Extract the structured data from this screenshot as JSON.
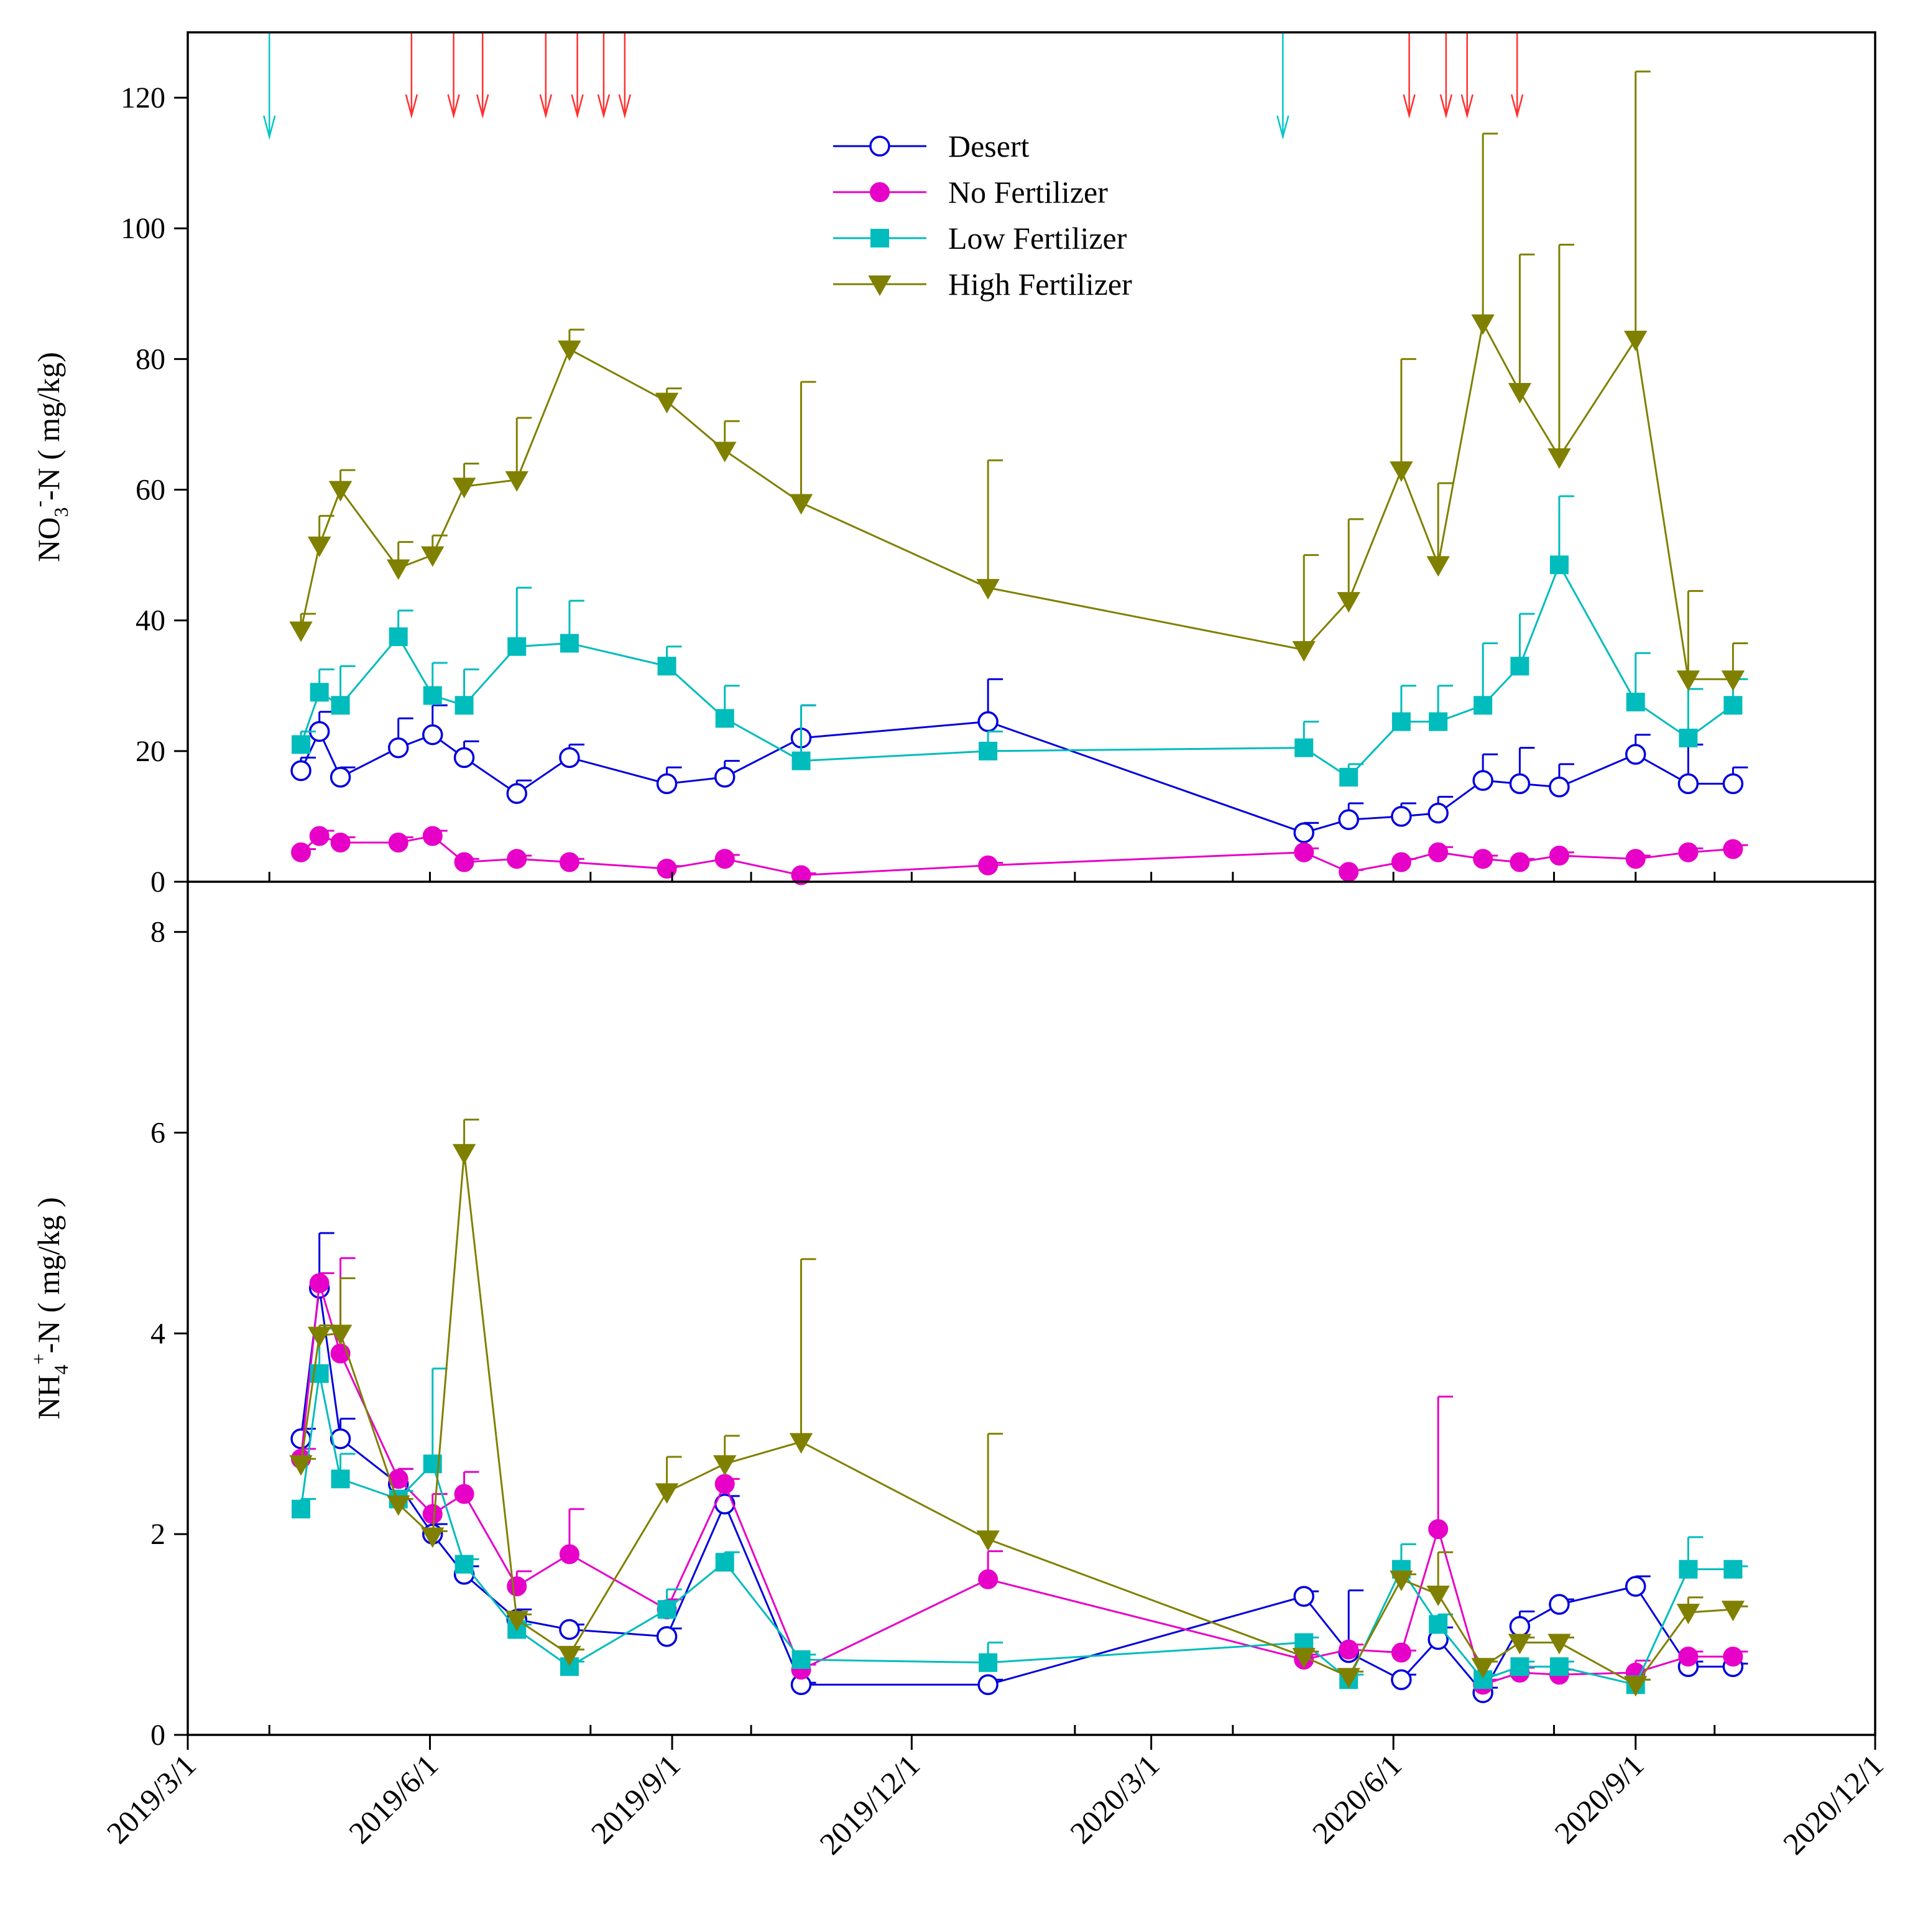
{
  "colors": {
    "Desert": "#0000dd",
    "No Fertilizer": "#e600c8",
    "Low Fertilizer": "#00bcbc",
    "High Fertilizer": "#808000",
    "irrigation_arrow": "#00c8c8",
    "fertilization_arrow": "#ff3030",
    "axis": "#000000"
  },
  "chart_data": [
    {
      "type": "line",
      "panel": "top",
      "title": "",
      "ylabel_parts": [
        "NO",
        "3",
        "-",
        "-N ( mg/kg)"
      ],
      "ylim": [
        0,
        130
      ],
      "yticks": [
        0,
        20,
        40,
        60,
        80,
        100,
        120
      ],
      "xlim": [
        "2019-03-01",
        "2020-12-01"
      ],
      "xticks": [
        "2019-03-01",
        "2019-06-01",
        "2019-09-01",
        "2019-12-01",
        "2020-03-01",
        "2020-06-01",
        "2020-09-01",
        "2020-12-01"
      ],
      "legend": "top-center",
      "irrigation_arrows": [
        "2019-04-01",
        "2020-04-20"
      ],
      "fertilization_arrows": [
        "2019-05-25",
        "2019-06-10",
        "2019-06-21",
        "2019-07-15",
        "2019-07-27",
        "2019-08-06",
        "2019-08-14",
        "2020-06-07",
        "2020-06-21",
        "2020-06-29",
        "2020-07-18"
      ],
      "series": [
        {
          "name": "Desert",
          "marker": "circle-open",
          "x": [
            "2019-04-13",
            "2019-04-20",
            "2019-04-28",
            "2019-05-20",
            "2019-06-02",
            "2019-06-14",
            "2019-07-04",
            "2019-07-24",
            "2019-08-30",
            "2019-09-21",
            "2019-10-20",
            "2019-12-30",
            "2020-04-28",
            "2020-05-15",
            "2020-06-04",
            "2020-06-18",
            "2020-07-05",
            "2020-07-19",
            "2020-08-03",
            "2020-09-01",
            "2020-09-21",
            "2020-10-08"
          ],
          "values": [
            17,
            23,
            16,
            20.5,
            22.5,
            19,
            13.5,
            19,
            15,
            16,
            22,
            24.5,
            7.5,
            9.5,
            10,
            10.5,
            15.5,
            15,
            14.5,
            19.5,
            15,
            15
          ],
          "err": [
            2,
            3,
            1.5,
            4.5,
            4.5,
            2.5,
            2,
            2,
            2.5,
            2.5,
            5,
            6.5,
            1.5,
            2.5,
            2,
            2.5,
            4,
            5.5,
            3.5,
            3,
            6,
            2.5
          ]
        },
        {
          "name": "No Fertilizer",
          "marker": "circle-filled",
          "x": [
            "2019-04-13",
            "2019-04-20",
            "2019-04-28",
            "2019-05-20",
            "2019-06-02",
            "2019-06-14",
            "2019-07-04",
            "2019-07-24",
            "2019-08-30",
            "2019-09-21",
            "2019-10-20",
            "2019-12-30",
            "2020-04-28",
            "2020-05-15",
            "2020-06-04",
            "2020-06-18",
            "2020-07-05",
            "2020-07-19",
            "2020-08-03",
            "2020-09-01",
            "2020-09-21",
            "2020-10-08"
          ],
          "values": [
            4.5,
            7,
            6,
            6,
            7,
            3,
            3.5,
            3,
            2,
            3.5,
            1,
            2.5,
            4.5,
            1.5,
            3,
            4.5,
            3.5,
            3,
            4,
            3.5,
            4.5,
            5
          ],
          "err": [
            0.5,
            0.8,
            0.8,
            0.8,
            0.8,
            0.5,
            0.5,
            0.5,
            0.4,
            0.6,
            0.3,
            0.4,
            0.6,
            0.3,
            0.5,
            0.8,
            0.5,
            0.5,
            0.5,
            0.5,
            0.6,
            0.6
          ]
        },
        {
          "name": "Low Fertilizer",
          "marker": "square-filled",
          "x": [
            "2019-04-13",
            "2019-04-20",
            "2019-04-28",
            "2019-05-20",
            "2019-06-02",
            "2019-06-14",
            "2019-07-04",
            "2019-07-24",
            "2019-08-30",
            "2019-09-21",
            "2019-10-20",
            "2019-12-30",
            "2020-04-28",
            "2020-05-15",
            "2020-06-04",
            "2020-06-18",
            "2020-07-05",
            "2020-07-19",
            "2020-08-03",
            "2020-09-01",
            "2020-09-21",
            "2020-10-08"
          ],
          "values": [
            21,
            29,
            27,
            37.5,
            28.5,
            27,
            36,
            36.5,
            33,
            25,
            18.5,
            20,
            20.5,
            16,
            24.5,
            24.5,
            27,
            33,
            48.5,
            27.5,
            22,
            27
          ],
          "err": [
            2,
            3.5,
            6,
            4,
            5,
            5.5,
            9,
            6.5,
            3,
            5,
            8.5,
            3,
            4,
            2,
            5.5,
            5.5,
            9.5,
            8,
            10.5,
            7.5,
            7.5,
            4
          ]
        },
        {
          "name": "High Fertilizer",
          "marker": "triangle-down-filled",
          "x": [
            "2019-04-13",
            "2019-04-20",
            "2019-04-28",
            "2019-05-20",
            "2019-06-02",
            "2019-06-14",
            "2019-07-04",
            "2019-07-24",
            "2019-08-30",
            "2019-09-21",
            "2019-10-20",
            "2019-12-30",
            "2020-04-28",
            "2020-05-15",
            "2020-06-04",
            "2020-06-18",
            "2020-07-05",
            "2020-07-19",
            "2020-08-03",
            "2020-09-01",
            "2020-09-21",
            "2020-10-08"
          ],
          "values": [
            38.5,
            51.5,
            60,
            48,
            50,
            60.5,
            61.5,
            81.5,
            73.5,
            66,
            58,
            45,
            35.5,
            43,
            63,
            48.5,
            85.5,
            75,
            65,
            83,
            31,
            31
          ],
          "err": [
            2.5,
            4.5,
            3,
            4,
            3,
            3.5,
            9.5,
            3,
            2,
            4.5,
            18.5,
            19.5,
            14.5,
            12.5,
            17,
            12.5,
            29,
            21,
            32.5,
            41,
            13.5,
            5.5
          ]
        }
      ]
    },
    {
      "type": "line",
      "panel": "bottom",
      "title": "",
      "ylabel_parts": [
        "NH",
        "4",
        "+",
        "-N ( mg/kg )"
      ],
      "ylim": [
        0,
        8.5
      ],
      "yticks": [
        0,
        2,
        4,
        6,
        8
      ],
      "xlim": [
        "2019-03-01",
        "2020-12-01"
      ],
      "xticks": [
        "2019-03-01",
        "2019-06-01",
        "2019-09-01",
        "2019-12-01",
        "2020-03-01",
        "2020-06-01",
        "2020-09-01",
        "2020-12-01"
      ],
      "xtick_labels": [
        "2019/3/1",
        "2019/6/1",
        "2019/9/1",
        "2019/12/1",
        "2020/3/1",
        "2020/6/1",
        "2020/9/1",
        "2020/12/1"
      ],
      "series": [
        {
          "name": "Desert",
          "marker": "circle-open",
          "x": [
            "2019-04-13",
            "2019-04-20",
            "2019-04-28",
            "2019-05-20",
            "2019-06-02",
            "2019-06-14",
            "2019-07-04",
            "2019-07-24",
            "2019-08-30",
            "2019-09-21",
            "2019-10-20",
            "2019-12-30",
            "2020-04-28",
            "2020-05-15",
            "2020-06-04",
            "2020-06-18",
            "2020-07-05",
            "2020-07-19",
            "2020-08-03",
            "2020-09-01",
            "2020-09-21",
            "2020-10-08"
          ],
          "values": [
            2.95,
            4.45,
            2.95,
            2.5,
            2.0,
            1.6,
            1.15,
            1.05,
            0.98,
            2.3,
            0.5,
            0.5,
            1.38,
            0.82,
            0.55,
            0.95,
            0.42,
            1.08,
            1.3,
            1.48,
            0.68,
            0.68
          ],
          "err": [
            0.1,
            0.55,
            0.2,
            0.15,
            0.1,
            0.08,
            0.1,
            0.05,
            0.08,
            0.08,
            0.02,
            0.05,
            0.05,
            0.62,
            0.05,
            0.12,
            0.05,
            0.15,
            0.05,
            0.1,
            0.05,
            0.03
          ]
        },
        {
          "name": "No Fertilizer",
          "marker": "circle-filled",
          "x": [
            "2019-04-13",
            "2019-04-20",
            "2019-04-28",
            "2019-05-20",
            "2019-06-02",
            "2019-06-14",
            "2019-07-04",
            "2019-07-24",
            "2019-08-30",
            "2019-09-21",
            "2019-10-20",
            "2019-12-30",
            "2020-04-28",
            "2020-05-15",
            "2020-06-04",
            "2020-06-18",
            "2020-07-05",
            "2020-07-19",
            "2020-08-03",
            "2020-09-01",
            "2020-09-21",
            "2020-10-08"
          ],
          "values": [
            2.75,
            4.5,
            3.8,
            2.55,
            2.2,
            2.4,
            1.48,
            1.8,
            1.25,
            2.5,
            0.65,
            1.55,
            0.75,
            0.85,
            0.82,
            2.05,
            0.5,
            0.62,
            0.6,
            0.62,
            0.78,
            0.78
          ],
          "err": [
            0.1,
            0.1,
            0.95,
            0.1,
            0.2,
            0.22,
            0.15,
            0.45,
            0.1,
            0.05,
            0.05,
            0.28,
            0.05,
            0.05,
            0.02,
            1.32,
            0.05,
            0.05,
            0.05,
            0.12,
            0.05,
            0.05
          ]
        },
        {
          "name": "Low Fertilizer",
          "marker": "square-filled",
          "x": [
            "2019-04-13",
            "2019-04-20",
            "2019-04-28",
            "2019-05-20",
            "2019-06-02",
            "2019-06-14",
            "2019-07-04",
            "2019-07-24",
            "2019-08-30",
            "2019-09-21",
            "2019-10-20",
            "2019-12-30",
            "2020-04-28",
            "2020-05-15",
            "2020-06-04",
            "2020-06-18",
            "2020-07-05",
            "2020-07-19",
            "2020-08-03",
            "2020-09-01",
            "2020-09-21",
            "2020-10-08"
          ],
          "values": [
            2.25,
            3.6,
            2.55,
            2.35,
            2.7,
            1.7,
            1.05,
            0.68,
            1.25,
            1.72,
            0.75,
            0.72,
            0.92,
            0.55,
            1.65,
            1.1,
            0.55,
            0.68,
            0.68,
            0.5,
            1.65,
            1.65
          ],
          "err": [
            0.1,
            0.45,
            0.25,
            0.08,
            0.95,
            0.05,
            0.05,
            0.05,
            0.2,
            0.1,
            0.05,
            0.2,
            0.05,
            0.05,
            0.25,
            0.1,
            0.05,
            0.05,
            0.05,
            0.05,
            0.32,
            0.03
          ]
        },
        {
          "name": "High Fertilizer",
          "marker": "triangle-down-filled",
          "x": [
            "2019-04-13",
            "2019-04-20",
            "2019-04-28",
            "2019-05-20",
            "2019-06-02",
            "2019-06-14",
            "2019-07-04",
            "2019-07-24",
            "2019-08-30",
            "2019-09-21",
            "2019-10-20",
            "2019-12-30",
            "2020-04-28",
            "2020-05-15",
            "2020-06-04",
            "2020-06-18",
            "2020-07-05",
            "2020-07-19",
            "2020-08-03",
            "2020-09-01",
            "2020-09-21",
            "2020-10-08"
          ],
          "values": [
            2.7,
            3.98,
            4.0,
            2.3,
            1.98,
            5.8,
            1.15,
            0.8,
            2.42,
            2.7,
            2.92,
            1.95,
            0.78,
            0.58,
            1.55,
            1.4,
            0.68,
            0.92,
            0.92,
            0.5,
            1.22,
            1.25
          ],
          "err": [
            0.05,
            0.1,
            0.55,
            0.05,
            0.05,
            0.33,
            0.05,
            0.05,
            0.35,
            0.28,
            1.82,
            1.05,
            0.05,
            0.05,
            0.05,
            0.42,
            0.05,
            0.05,
            0.05,
            0.05,
            0.15,
            0.03
          ]
        }
      ]
    }
  ]
}
